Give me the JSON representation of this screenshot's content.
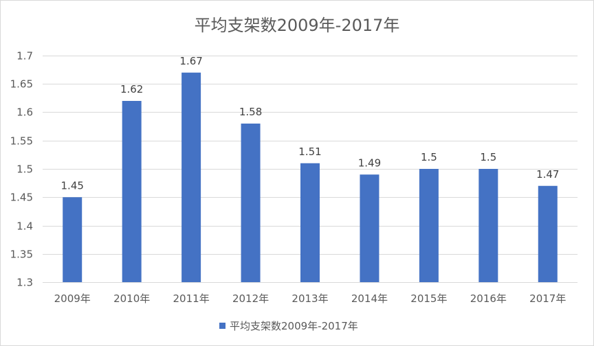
{
  "chart_data": {
    "type": "bar",
    "title": "平均支架数2009年-2017年",
    "xlabel": "",
    "ylabel": "",
    "categories": [
      "2009年",
      "2010年",
      "2011年",
      "2012年",
      "2013年",
      "2014年",
      "2015年",
      "2016年",
      "2017年"
    ],
    "series": [
      {
        "name": "平均支架数2009年-2017年",
        "values": [
          1.45,
          1.62,
          1.67,
          1.58,
          1.51,
          1.49,
          1.5,
          1.5,
          1.47
        ],
        "labels": [
          "1.45",
          "1.62",
          "1.67",
          "1.58",
          "1.51",
          "1.49",
          "1.5",
          "1.5",
          "1.47"
        ],
        "color": "#4472c4"
      }
    ],
    "ylim": [
      1.3,
      1.7
    ],
    "yticks": [
      1.3,
      1.35,
      1.4,
      1.45,
      1.5,
      1.55,
      1.6,
      1.65,
      1.7
    ],
    "ytick_labels": [
      "1.3",
      "1.35",
      "1.4",
      "1.45",
      "1.5",
      "1.55",
      "1.6",
      "1.65",
      "1.7"
    ],
    "grid": true,
    "legend_position": "bottom"
  },
  "colors": {
    "bar": "#4472c4",
    "grid": "#d9d9d9",
    "text": "#595959",
    "border": "#d9d9d9"
  }
}
